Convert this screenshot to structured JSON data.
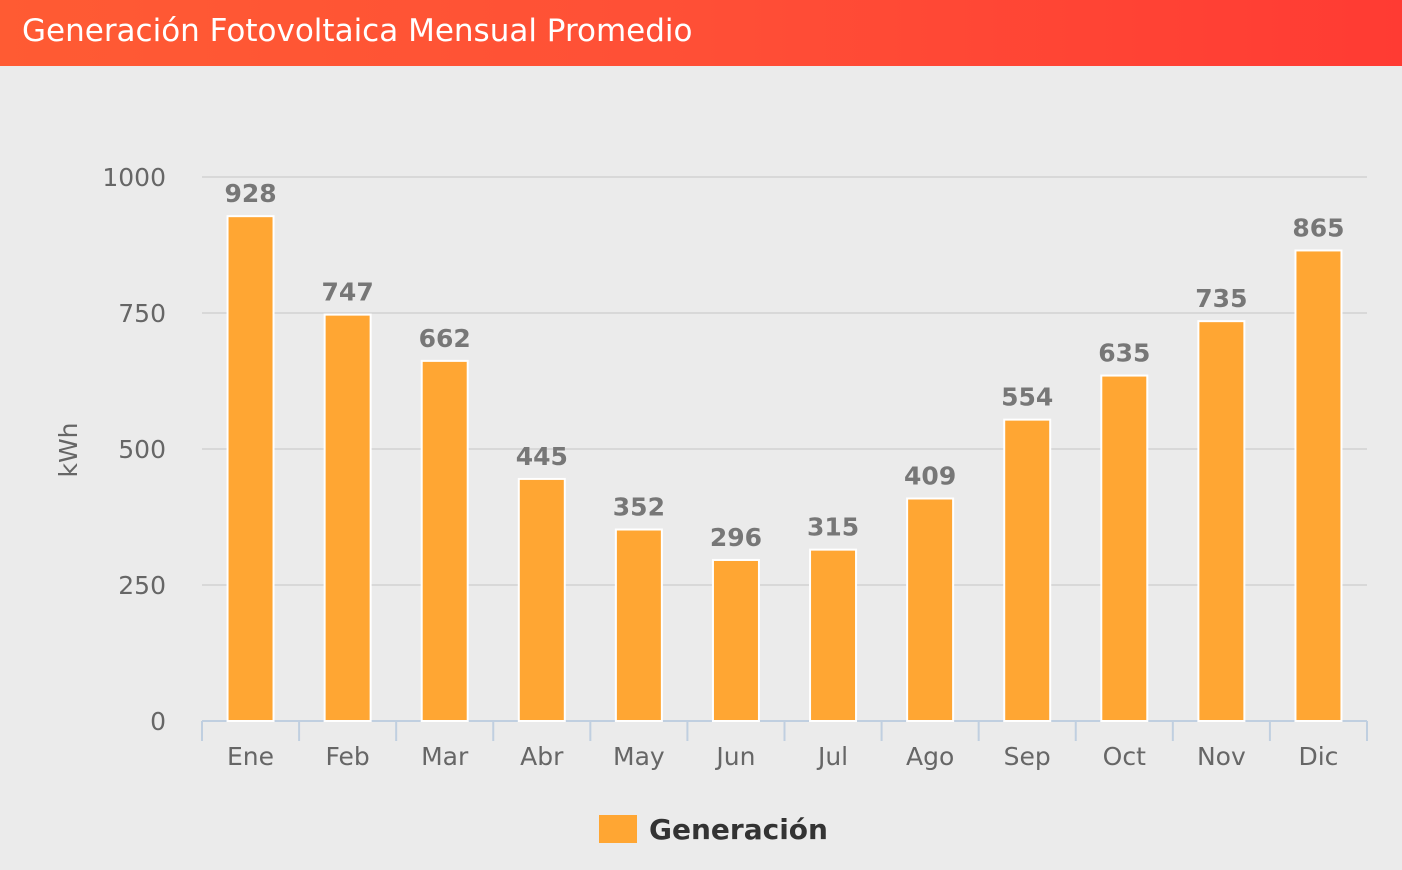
{
  "header": {
    "title": "Generación Fotovoltaica Mensual Promedio"
  },
  "colors": {
    "header_start": "#ff5b33",
    "header_end": "#ff3b33",
    "background": "#ebebeb",
    "bar": "#ffa633",
    "bar_border": "#ffffff",
    "grid": "#d8d8d8",
    "axis": "#c0cfe0",
    "text": "#666666",
    "data_label": "#777777"
  },
  "legend": {
    "label": "Generación",
    "color": "#ffa633"
  },
  "chart_data": {
    "type": "bar",
    "title": "",
    "xlabel": "",
    "ylabel": "kWh",
    "categories": [
      "Ene",
      "Feb",
      "Mar",
      "Abr",
      "May",
      "Jun",
      "Jul",
      "Ago",
      "Sep",
      "Oct",
      "Nov",
      "Dic"
    ],
    "series": [
      {
        "name": "Generación",
        "values": [
          928,
          747,
          662,
          445,
          352,
          296,
          315,
          409,
          554,
          635,
          735,
          865
        ]
      }
    ],
    "ylim": [
      0,
      1000
    ],
    "yticks": [
      0,
      250,
      500,
      750,
      1000
    ],
    "grid": true,
    "legend_position": "bottom-center",
    "data_labels": true
  }
}
